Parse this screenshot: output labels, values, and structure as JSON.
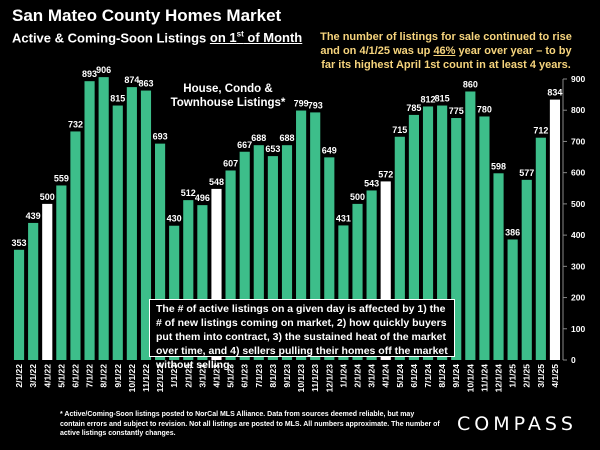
{
  "header": {
    "title": "San Mateo County Homes Market",
    "subtitle_prefix": "Active & Coming-Soon Listings ",
    "subtitle_underlined": "on 1",
    "subtitle_sup": "st",
    "subtitle_underlined_suffix": " of Month"
  },
  "annotation_top": {
    "line1": "The number of listings for sale continued to rise",
    "line2_prefix": "and on 4/1/25 was up ",
    "line2_highlight": "46%",
    "line2_suffix": " year over year – to by",
    "line3": "far its highest April 1st count in at least 4 years."
  },
  "series_label_line1": "House, Condo &",
  "series_label_line2": "Townhouse Listings*",
  "info_box": "The # of active listings on a given day is affected by 1) the # of new listings coming on market, 2) how quickly buyers put them into contract, 3) the sustained heat of the market over time, and 4) sellers pulling their homes off the market without selling.",
  "footnote": "* Active/Coming-Soon listings posted to NorCal MLS Alliance.  Data from sources deemed reliable, but may contain errors and subject to revision.  Not all listings are posted to MLS. All numbers approximate. The number of active listings constantly changes.",
  "logo_text": "COMPASS",
  "colors": {
    "bar": "#3dbe8a",
    "highlight_bar": "#ffffff",
    "background": "#000000",
    "annotation": "#f6d47d"
  },
  "chart_data": {
    "type": "bar",
    "series_name": "House, Condo & Townhouse Listings*",
    "categories": [
      "2/1/22",
      "3/1/22",
      "4/1/22",
      "5/1/22",
      "6/1/22",
      "7/1/22",
      "8/1/22",
      "9/1/22",
      "10/1/22",
      "11/1/22",
      "12/1/22",
      "1/1/23",
      "2/1/23",
      "3/1/23",
      "4/1/23",
      "5/1/23",
      "6/1/23",
      "7/1/23",
      "8/1/23",
      "9/1/23",
      "10/1/23",
      "11/1/23",
      "12/1/23",
      "1/1/24",
      "2/1/24",
      "3/1/24",
      "4/1/24",
      "5/1/24",
      "6/1/24",
      "7/1/24",
      "8/1/24",
      "9/1/24",
      "10/1/24",
      "11/1/24",
      "12/1/24",
      "1/1/25",
      "2/1/25",
      "3/1/25",
      "4/1/25"
    ],
    "values": [
      353,
      439,
      500,
      559,
      732,
      893,
      906,
      815,
      874,
      863,
      693,
      430,
      512,
      496,
      548,
      607,
      667,
      688,
      653,
      688,
      799,
      793,
      649,
      431,
      500,
      543,
      572,
      715,
      785,
      812,
      815,
      775,
      860,
      780,
      598,
      386,
      577,
      712,
      834
    ],
    "highlighted_categories": [
      "4/1/22",
      "4/1/23",
      "4/1/24",
      "4/1/25"
    ],
    "ylim": [
      0,
      900
    ],
    "yticks": [
      0,
      100,
      200,
      300,
      400,
      500,
      600,
      700,
      800,
      900
    ],
    "y_axis_side": "right",
    "grid": false,
    "legend": "none"
  }
}
